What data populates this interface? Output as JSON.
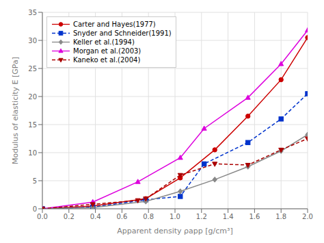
{
  "chart_data": {
    "type": "line",
    "x_label": "Apparent density ρapp [g/cm³]",
    "y_label": "Modulus of elasticity E [GPa]",
    "xlim": [
      0,
      2.0
    ],
    "ylim": [
      0,
      35
    ],
    "xticks": [
      {
        "value": 0,
        "label": "0.0"
      },
      0.2,
      0.4,
      0.6,
      0.8,
      {
        "value": 1.0,
        "label": "1.0"
      },
      1.2,
      1.4,
      1.6,
      1.8,
      {
        "value": 2.0,
        "label": "2.0"
      }
    ],
    "yticks": [
      0,
      5,
      10,
      15,
      20,
      25,
      30,
      35
    ],
    "grid": true,
    "legend": "upper left",
    "series": [
      {
        "name": "Carter and Hayes(1977)",
        "color": "#cc0000",
        "line_style": "solid",
        "marker": "circle",
        "x": [
          0.0,
          0.38,
          0.78,
          1.04,
          1.3,
          1.55,
          1.8,
          2.0
        ],
        "values": [
          0.0,
          0.5,
          1.8,
          5.5,
          10.5,
          16.5,
          23.0,
          30.5
        ]
      },
      {
        "name": "Snyder and Schneider(1991)",
        "color": "#0033cc",
        "line_style": "dashed",
        "marker": "square",
        "x": [
          0.0,
          0.38,
          0.78,
          1.04,
          1.22,
          1.55,
          1.8,
          2.0
        ],
        "values": [
          0.0,
          0.3,
          1.6,
          2.2,
          8.0,
          11.8,
          16.0,
          20.5
        ]
      },
      {
        "name": "Keller et al.(1994)",
        "color": "#888888",
        "line_style": "solid",
        "marker": "diamond",
        "x": [
          0.0,
          0.38,
          0.78,
          1.04,
          1.3,
          1.55,
          1.8,
          2.0
        ],
        "values": [
          0.0,
          0.2,
          1.3,
          3.1,
          5.2,
          7.5,
          10.3,
          13.2
        ]
      },
      {
        "name": "Morgan et al.(2003)",
        "color": "#dd00dd",
        "line_style": "solid",
        "marker": "triangle-up",
        "x": [
          0.0,
          0.38,
          0.72,
          1.04,
          1.22,
          1.55,
          1.8,
          2.0
        ],
        "values": [
          0.0,
          1.2,
          4.8,
          9.1,
          14.3,
          19.8,
          25.8,
          31.8
        ]
      },
      {
        "name": "Kaneko et al.(2004)",
        "color": "#aa0000",
        "line_style": "dashed",
        "marker": "triangle-down",
        "x": [
          0.0,
          0.38,
          0.72,
          0.78,
          1.04,
          1.3,
          1.55,
          1.8,
          2.0
        ],
        "values": [
          0.0,
          0.8,
          1.5,
          1.8,
          6.0,
          8.0,
          7.8,
          10.5,
          12.5
        ]
      }
    ]
  }
}
